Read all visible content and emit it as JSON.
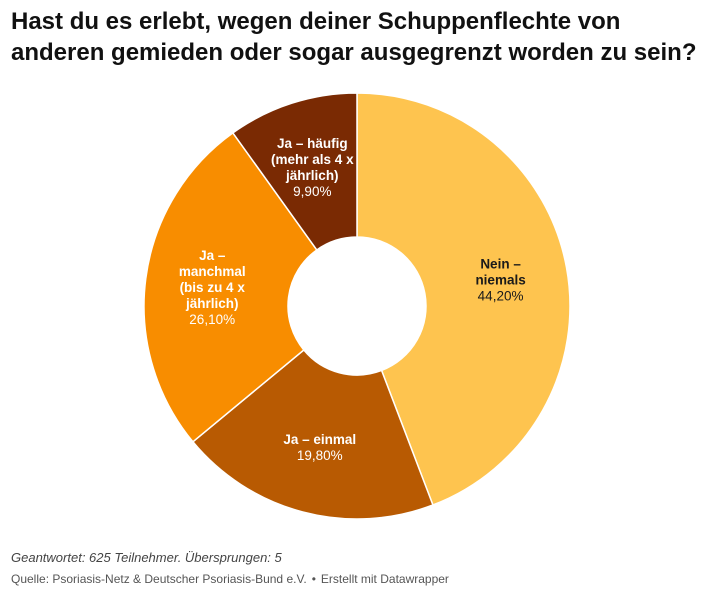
{
  "header": {
    "title": "Hast du es erlebt, wegen deiner Schuppenflechte von anderen gemieden oder sogar ausgegrenzt worden zu sein?"
  },
  "chart_data": {
    "type": "pie",
    "variant": "donut",
    "title": "Hast du es erlebt, wegen deiner Schuppenflechte von anderen gemieden oder sogar ausgegrenzt worden zu sein?",
    "categories": [
      "Nein – niemals",
      "Ja – einmal",
      "Ja – manchmal (bis zu 4 x jährlich)",
      "Ja – häufig (mehr als 4 x jährlich)"
    ],
    "values": [
      44.2,
      19.8,
      26.1,
      9.9
    ],
    "value_labels": [
      "44,20%",
      "19,80%",
      "26,10%",
      "9,90%"
    ],
    "label_lines": [
      [
        "Nein –",
        "niemals"
      ],
      [
        "Ja – einmal"
      ],
      [
        "Ja –",
        "manchmal",
        "(bis zu 4 x",
        "jährlich)"
      ],
      [
        "Ja – häufig",
        "(mehr als 4 x",
        "jährlich)"
      ]
    ],
    "colors": [
      "#fec44f",
      "#b85a02",
      "#f88d00",
      "#7a2a03"
    ],
    "label_colors": [
      "#1a1a1a",
      "#ffffff",
      "#ffffff",
      "#ffffff"
    ],
    "legend": "none"
  },
  "footer": {
    "note": "Geantwortet: 625 Teilnehmer. Übersprungen: 5",
    "source": "Quelle: Psoriasis-Netz & Deutscher Psoriasis-Bund e.V.",
    "separator": "•",
    "credit": "Erstellt mit Datawrapper"
  }
}
